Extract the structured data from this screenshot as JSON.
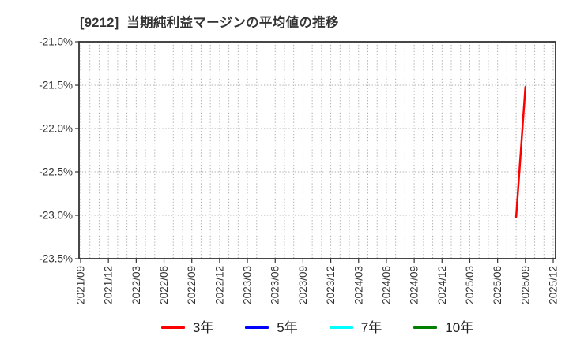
{
  "title": "[9212]  当期純利益マージンの平均値の推移",
  "chart_data": {
    "type": "line",
    "title": "[9212]  当期純利益マージンの平均値の推移",
    "xlabel": "",
    "ylabel": "",
    "ylim": [
      -23.5,
      -21.0
    ],
    "y_tick_values": [
      -21.0,
      -21.5,
      -22.0,
      -22.5,
      -23.0,
      -23.5
    ],
    "y_tick_labels": [
      "-21.0%",
      "-21.5%",
      "-22.0%",
      "-22.5%",
      "-23.0%",
      "-23.5%"
    ],
    "x_tick_labels": [
      "2021/09",
      "2021/12",
      "2022/03",
      "2022/06",
      "2022/09",
      "2022/12",
      "2023/03",
      "2023/06",
      "2023/09",
      "2023/12",
      "2024/03",
      "2024/06",
      "2024/09",
      "2024/12",
      "2025/03",
      "2025/06",
      "2025/09",
      "2025/12"
    ],
    "x_start_month": "2021/09",
    "x_end_month": "2025/12",
    "grid": {
      "vertical": "monthly, dotted",
      "horizontal": "dotted at 0.5% steps"
    },
    "legend_position": "bottom-center",
    "series": [
      {
        "name": "3年",
        "color": "#ff0000",
        "points": [
          {
            "date": "2025/08",
            "value": -23.02
          },
          {
            "date": "2025/09",
            "value": -21.52
          }
        ]
      },
      {
        "name": "5年",
        "color": "#0000ff",
        "points": []
      },
      {
        "name": "7年",
        "color": "#00ffff",
        "points": []
      },
      {
        "name": "10年",
        "color": "#008000",
        "points": []
      }
    ],
    "colors": {
      "background": "#ffffff",
      "grid": "#ababab",
      "spine": "#333333",
      "tick_label": "#333333",
      "title": "#333333"
    }
  }
}
